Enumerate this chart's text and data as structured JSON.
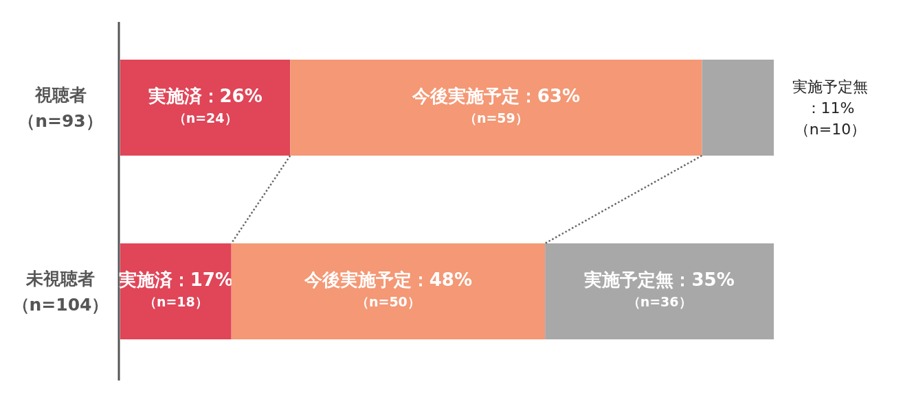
{
  "chart_data": {
    "type": "bar",
    "orientation": "horizontal",
    "stacked": true,
    "categories": [
      "視聴者（n=93）",
      "未視聴者（n=104）"
    ],
    "series": [
      {
        "color": "#e04558",
        "values": [
          26,
          17
        ],
        "value_labels": [
          "実施済：26%（n=24）",
          "実施済：17%（n=18）"
        ]
      },
      {
        "color": "#f49875",
        "values": [
          63,
          48
        ],
        "value_labels": [
          "今後実施予定：63%（n=59）",
          "今後実施予定：48%（n=50）"
        ]
      },
      {
        "color": "#a8a8a8",
        "values": [
          11,
          35
        ],
        "value_labels": [
          "実施予定無：11%（n=10）",
          "実施予定無：35%（n=36）"
        ]
      }
    ]
  }
}
